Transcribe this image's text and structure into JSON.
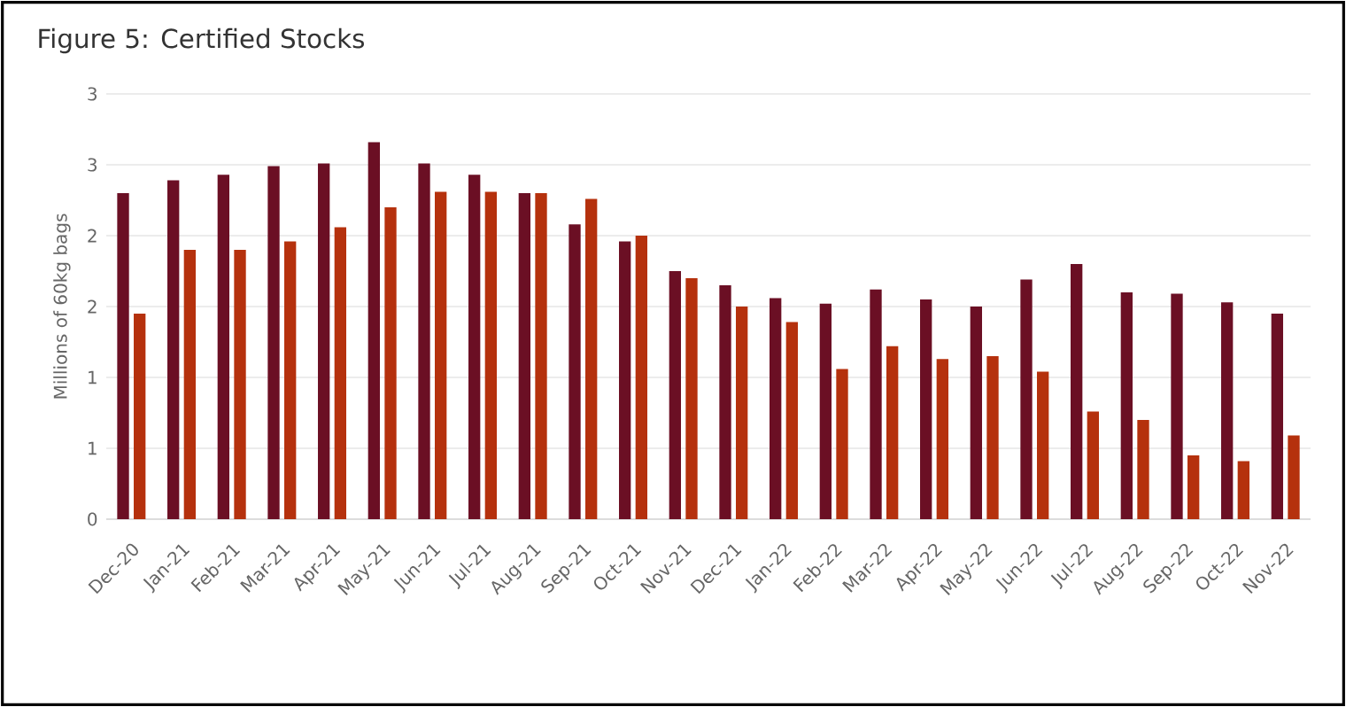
{
  "chart_data": {
    "type": "bar",
    "title": "Figure 5: Certified Stocks",
    "ylabel": "Millions of 60kg bags",
    "categories": [
      "Dec-20",
      "Jan-21",
      "Feb-21",
      "Mar-21",
      "Apr-21",
      "May-21",
      "Jun-21",
      "Jul-21",
      "Aug-21",
      "Sep-21",
      "Oct-21",
      "Nov-21",
      "Dec-21",
      "Jan-22",
      "Feb-22",
      "Mar-22",
      "Apr-22",
      "May-22",
      "Jun-22",
      "Jul-22",
      "Aug-22",
      "Sep-22",
      "Oct-22",
      "Nov-22"
    ],
    "series": [
      {
        "color": "#6b0f24",
        "values": [
          2.3,
          2.39,
          2.43,
          2.49,
          2.51,
          2.66,
          2.51,
          2.43,
          2.3,
          2.08,
          1.96,
          1.75,
          1.65,
          1.56,
          1.52,
          1.62,
          1.55,
          1.5,
          1.69,
          1.8,
          1.6,
          1.59,
          1.53,
          1.45
        ]
      },
      {
        "color": "#b5310d",
        "values": [
          1.45,
          1.9,
          1.9,
          1.96,
          2.06,
          2.2,
          2.31,
          2.31,
          2.3,
          2.26,
          2.0,
          1.7,
          1.5,
          1.39,
          1.06,
          1.22,
          1.13,
          1.15,
          1.04,
          0.76,
          0.7,
          0.45,
          0.41,
          0.59
        ]
      }
    ],
    "ylim": [
      0,
      3
    ],
    "yticks": [
      0,
      {
        "value": 0.5,
        "label": "1"
      },
      1,
      {
        "value": 1.5,
        "label": "2"
      },
      2,
      {
        "value": 2.5,
        "label": "3"
      },
      3
    ],
    "grid": "y"
  }
}
